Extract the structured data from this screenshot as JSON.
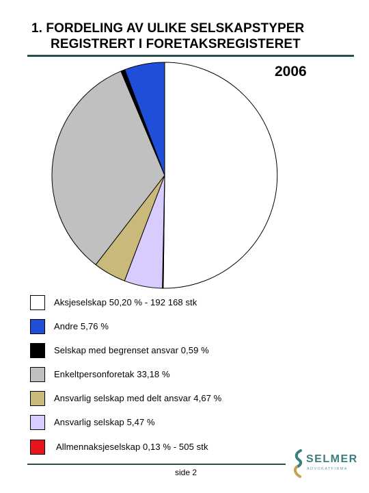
{
  "title": {
    "line1": "1.  FORDELING AV ULIKE SELSKAPSTYPER",
    "line2": "REGISTRERT I FORETAKSREGISTERET"
  },
  "year": "2006",
  "chart_data": {
    "type": "pie",
    "title": "2006",
    "slices": [
      {
        "label": "Aksjeselskap 50,20 % - 192 168 stk",
        "value": 50.2,
        "color": "#ffffff"
      },
      {
        "label": "Allmennaksjeselskap 0,13 % - 505 stk",
        "value": 0.13,
        "color": "#e8141c"
      },
      {
        "label": "Ansvarlig selskap 5,47 %",
        "value": 5.47,
        "color": "#d8ccff"
      },
      {
        "label": "Ansvarlig selskap med delt ansvar 4,67 %",
        "value": 4.67,
        "color": "#c9b97a"
      },
      {
        "label": "Enkeltpersonforetak 33,18 %",
        "value": 33.18,
        "color": "#c0c0c0"
      },
      {
        "label": "Selskap med begrenset ansvar  0,59 %",
        "value": 0.59,
        "color": "#000000"
      },
      {
        "label": "Andre 5,76 %",
        "value": 5.76,
        "color": "#1f4fd8"
      }
    ]
  },
  "legend": [
    {
      "label": "Aksjeselskap 50,20 % - 192 168 stk",
      "color": "#ffffff"
    },
    {
      "label": "Andre 5,76 %",
      "color": "#1f4fd8"
    },
    {
      "label": "Selskap med begrenset ansvar  0,59 %",
      "color": "#000000"
    },
    {
      "label": "Enkeltpersonforetak 33,18 %",
      "color": "#c0c0c0"
    },
    {
      "label": "Ansvarlig selskap med delt ansvar 4,67 %",
      "color": "#c9b97a"
    },
    {
      "label": "Ansvarlig selskap 5,47 %",
      "color": "#d8ccff"
    },
    {
      "label": "Allmennaksjeselskap 0,13 % - 505 stk",
      "color": "#e8141c"
    }
  ],
  "footer": {
    "page": "side 2",
    "logo_name": "SELMER",
    "logo_sub": "ADVOKATFIRMA"
  }
}
